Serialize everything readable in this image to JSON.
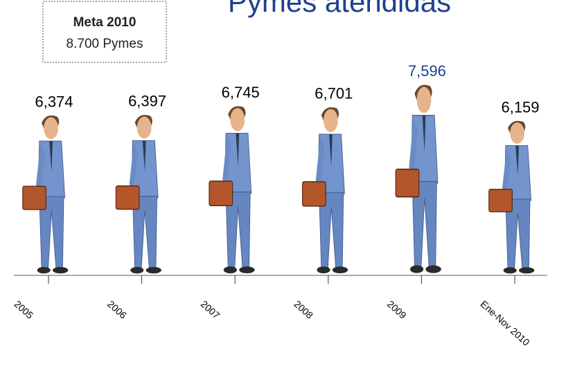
{
  "chart_data": {
    "type": "pictograph",
    "title": "Pymes atendidas",
    "annotation": {
      "title": "Meta 2010",
      "text": "8.700 Pymes"
    },
    "categories": [
      "2005",
      "2006",
      "2007",
      "2008",
      "2009",
      "Ene-Nov 2010"
    ],
    "values": [
      6374,
      6397,
      6745,
      6701,
      7596,
      6159
    ],
    "value_labels": [
      "6,374",
      "6,397",
      "6,745",
      "6,701",
      "7,596",
      "6,159"
    ],
    "label_colors": [
      "#000000",
      "#000000",
      "#000000",
      "#000000",
      "#1f3f8f",
      "#000000"
    ],
    "axis_color": "#3b55a5"
  }
}
